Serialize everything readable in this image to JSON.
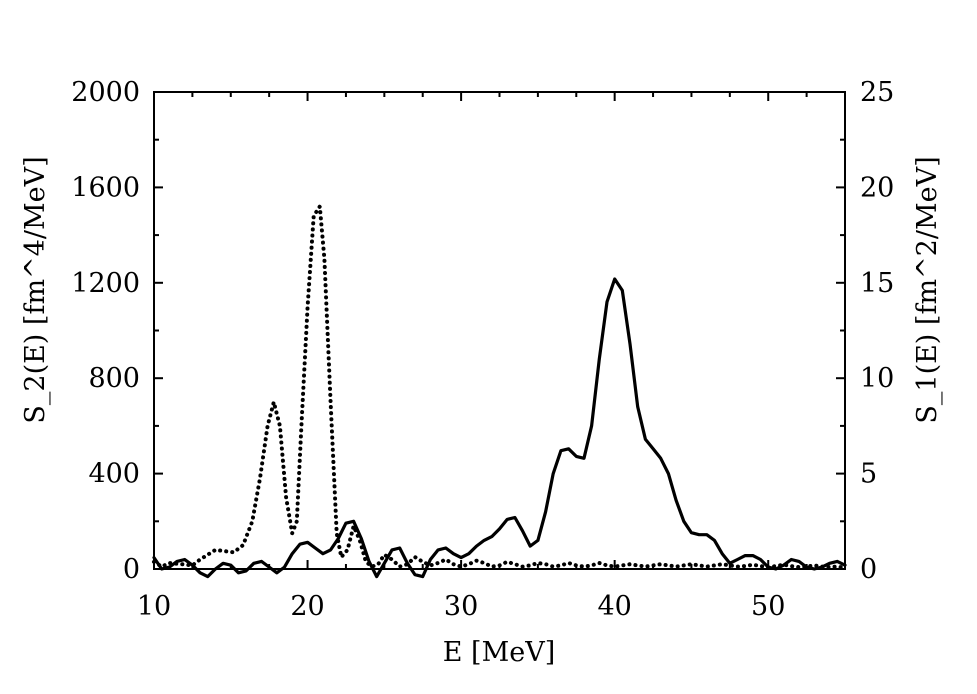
{
  "chart_data": {
    "type": "line",
    "title": "",
    "xlabel": "E [MeV]",
    "ylabel_left": "S_2(E) [fm^4/MeV]",
    "ylabel_right": "S_1(E) [fm^2/MeV]",
    "xlim": [
      10,
      55
    ],
    "ylim_left": [
      0,
      2000
    ],
    "ylim_right": [
      0,
      25
    ],
    "x_ticks": [
      10,
      20,
      30,
      40,
      50
    ],
    "y_left_ticks": [
      0,
      400,
      800,
      1200,
      1600,
      2000
    ],
    "y_right_ticks": [
      0,
      5,
      10,
      15,
      20,
      25
    ],
    "grid": false,
    "series": [
      {
        "style": "dotted",
        "axis": "left",
        "x": [
          10,
          10.5,
          11,
          11.8,
          12.5,
          13,
          13.5,
          14,
          14.6,
          15.2,
          15.8,
          16.4,
          16.9,
          17.4,
          17.8,
          18.2,
          18.6,
          19.0,
          19.3,
          19.6,
          20.0,
          20.4,
          20.8,
          21.1,
          21.5,
          21.9,
          22.2,
          22.6,
          23.0,
          23.4,
          23.8,
          24.2,
          24.6,
          25.0,
          25.5,
          26.0,
          26.5,
          27.0,
          27.5,
          28.0,
          28.5,
          29.0,
          29.5,
          30.0,
          30.5,
          31.0,
          31.5,
          32.0,
          32.5,
          33.0,
          33.5,
          34.0,
          34.5,
          35.0,
          35.5,
          36.0,
          36.5,
          37.0,
          37.5,
          38.0,
          38.5,
          39.0,
          39.5,
          40.0,
          40.5,
          41.0,
          41.5,
          42.0,
          42.5,
          43.0,
          43.5,
          44.0,
          44.5,
          45.0,
          45.5,
          46.0,
          46.5,
          47.0,
          47.5,
          48.0,
          48.5,
          49.0,
          49.5,
          50.0,
          50.5,
          51.0,
          51.5,
          52.0,
          52.5,
          53.0,
          53.5,
          54.0,
          54.5,
          55.0
        ],
        "values": [
          30,
          10,
          25,
          20,
          15,
          40,
          60,
          80,
          75,
          70,
          100,
          200,
          380,
          600,
          700,
          600,
          300,
          150,
          200,
          600,
          1100,
          1480,
          1520,
          1300,
          700,
          150,
          50,
          80,
          180,
          120,
          30,
          10,
          20,
          60,
          40,
          10,
          20,
          50,
          30,
          15,
          25,
          40,
          20,
          10,
          20,
          35,
          25,
          10,
          15,
          30,
          20,
          10,
          15,
          25,
          20,
          10,
          15,
          25,
          15,
          10,
          15,
          25,
          15,
          10,
          15,
          20,
          15,
          10,
          15,
          20,
          15,
          10,
          15,
          20,
          15,
          10,
          15,
          20,
          15,
          10,
          12,
          18,
          12,
          8,
          12,
          18,
          12,
          8,
          10,
          15,
          10,
          8,
          10,
          5
        ]
      },
      {
        "style": "solid",
        "axis": "right",
        "x": [
          10,
          10.5,
          11,
          11.5,
          12,
          12.5,
          13,
          13.5,
          14,
          14.5,
          15,
          15.5,
          16,
          16.5,
          17,
          17.5,
          18,
          18.5,
          19,
          19.5,
          20,
          20.5,
          21,
          21.5,
          22,
          22.5,
          23,
          23.5,
          24,
          24.5,
          25,
          25.5,
          26,
          26.5,
          27,
          27.5,
          28,
          28.5,
          29,
          29.5,
          30,
          30.5,
          31,
          31.5,
          32,
          32.5,
          33,
          33.5,
          34,
          34.5,
          35,
          35.5,
          36,
          36.5,
          37,
          37.5,
          38,
          38.5,
          39,
          39.5,
          40,
          40.5,
          41,
          41.5,
          42,
          42.5,
          43,
          43.5,
          44,
          44.5,
          45,
          45.5,
          46,
          46.5,
          47,
          47.5,
          48,
          48.5,
          49,
          49.5,
          50,
          50.5,
          51,
          51.5,
          52,
          52.5,
          53,
          53.5,
          54,
          54.5,
          55
        ],
        "values": [
          0.6,
          0.0,
          0.1,
          0.4,
          0.5,
          0.2,
          -0.2,
          -0.4,
          0.0,
          0.3,
          0.2,
          -0.2,
          -0.1,
          0.3,
          0.4,
          0.1,
          -0.2,
          0.1,
          0.8,
          1.3,
          1.4,
          1.1,
          0.8,
          1.0,
          1.6,
          2.4,
          2.5,
          1.6,
          0.4,
          -0.4,
          0.3,
          1.0,
          1.1,
          0.3,
          -0.3,
          -0.4,
          0.5,
          1.0,
          1.1,
          0.8,
          0.6,
          0.8,
          1.2,
          1.5,
          1.7,
          2.1,
          2.6,
          2.7,
          2.0,
          1.2,
          1.5,
          3.0,
          5.0,
          6.2,
          6.3,
          5.9,
          5.8,
          7.5,
          11.0,
          14.0,
          15.2,
          14.6,
          11.8,
          8.5,
          6.8,
          6.3,
          5.8,
          5.0,
          3.6,
          2.5,
          1.9,
          1.8,
          1.8,
          1.5,
          0.8,
          0.3,
          0.5,
          0.7,
          0.7,
          0.5,
          0.1,
          0.0,
          0.2,
          0.5,
          0.4,
          0.1,
          0.0,
          0.1,
          0.3,
          0.4,
          0.2
        ]
      }
    ]
  }
}
